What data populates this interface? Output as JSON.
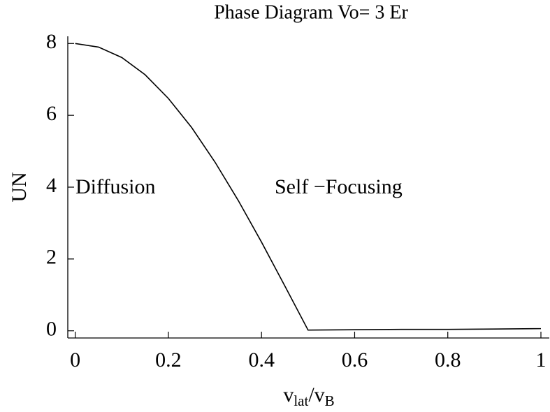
{
  "chart_data": {
    "type": "line",
    "title": "Phase Diagram   Vo= 3 Er",
    "x_label": [
      "v",
      "lat",
      "/v",
      "B"
    ],
    "y_label": "UN",
    "annotations": [
      "Diffusion",
      "Self −Focusing"
    ],
    "x": [
      0,
      0.05,
      0.1,
      0.15,
      0.2,
      0.25,
      0.3,
      0.35,
      0.4,
      0.45,
      0.5,
      0.6,
      0.7,
      0.8,
      0.9,
      1
    ],
    "series": [
      {
        "color": "#000000",
        "values": [
          8,
          7.9,
          7.61,
          7.13,
          6.47,
          5.66,
          4.7,
          3.63,
          2.47,
          1.25,
          0.02,
          0.03,
          0.04,
          0.04,
          0.05,
          0.06
        ]
      }
    ],
    "xlim": [
      -0.016,
      1.018
    ],
    "ylim": [
      -0.2,
      8.2
    ],
    "xticks": [
      0,
      0.2,
      0.4,
      0.6,
      0.8,
      1
    ],
    "yticks": [
      0,
      2,
      4,
      6,
      8
    ]
  }
}
